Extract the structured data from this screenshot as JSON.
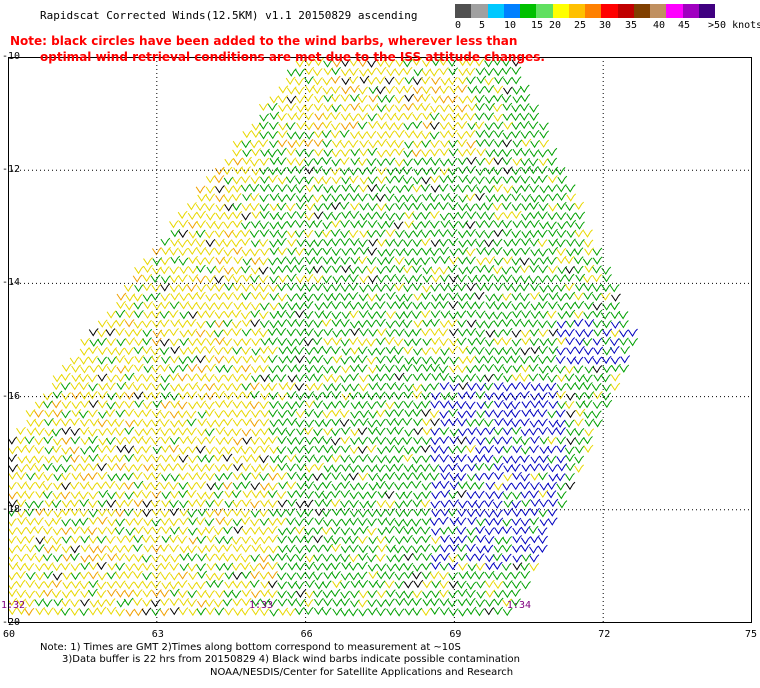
{
  "header": {
    "title": "Rapidscat Corrected Winds(12.5KM) v1.1 20150829 ascending",
    "note_line1": "Note: black circles have been added to the wind barbs, wherever less than",
    "note_line2": "optimal wind retrieval conditions are met due to the ISS attitude changes."
  },
  "color_scale": {
    "colors": [
      "#505050",
      "#a0a0a0",
      "#00c8ff",
      "#0080ff",
      "#00c000",
      "#60e060",
      "#ffff00",
      "#ffc000",
      "#ff8000",
      "#ff0000",
      "#c00000",
      "#804000",
      "#c09060",
      "#ff00ff",
      "#a000c0",
      "#400080"
    ],
    "labels": [
      "0",
      "5",
      "10",
      "15",
      "20",
      "25",
      "30",
      "35",
      "40",
      "45",
      ">50 knots"
    ]
  },
  "map": {
    "lon_ticks": [
      "60",
      "63",
      "66",
      "69",
      "72",
      "75"
    ],
    "lat_ticks": [
      "-10",
      "-12",
      "-14",
      "-16",
      "-18",
      "-20"
    ],
    "lon_range": [
      60,
      75
    ],
    "lat_range": [
      -10,
      -20
    ],
    "time_labels": [
      {
        "text": "1:32",
        "lon": 60.0,
        "lat": -19.7
      },
      {
        "text": "1:33",
        "lon": 65.0,
        "lat": -19.7
      },
      {
        "text": "1:34",
        "lon": 70.2,
        "lat": -19.7
      }
    ],
    "swath_polygon": [
      [
        65.9,
        -10.0
      ],
      [
        70.2,
        -10.0
      ],
      [
        72.7,
        -15.0
      ],
      [
        70.1,
        -20.0
      ],
      [
        60.0,
        -20.0
      ],
      [
        60.0,
        -16.8
      ]
    ],
    "barb_colors": {
      "green": "#00a000",
      "yellow": "#e8d800",
      "orange": "#f0a000",
      "black": "#000000",
      "blue": "#0000c0"
    }
  },
  "footer": {
    "line1": "Note: 1) Times are GMT 2)Times along bottom correspond to measurement at ~10S",
    "line2": "3)Data buffer is 22 hrs from 20150829 4) Black wind barbs indicate possible contamination",
    "line3": "NOAA/NESDIS/Center for Satellite Applications and Research"
  }
}
